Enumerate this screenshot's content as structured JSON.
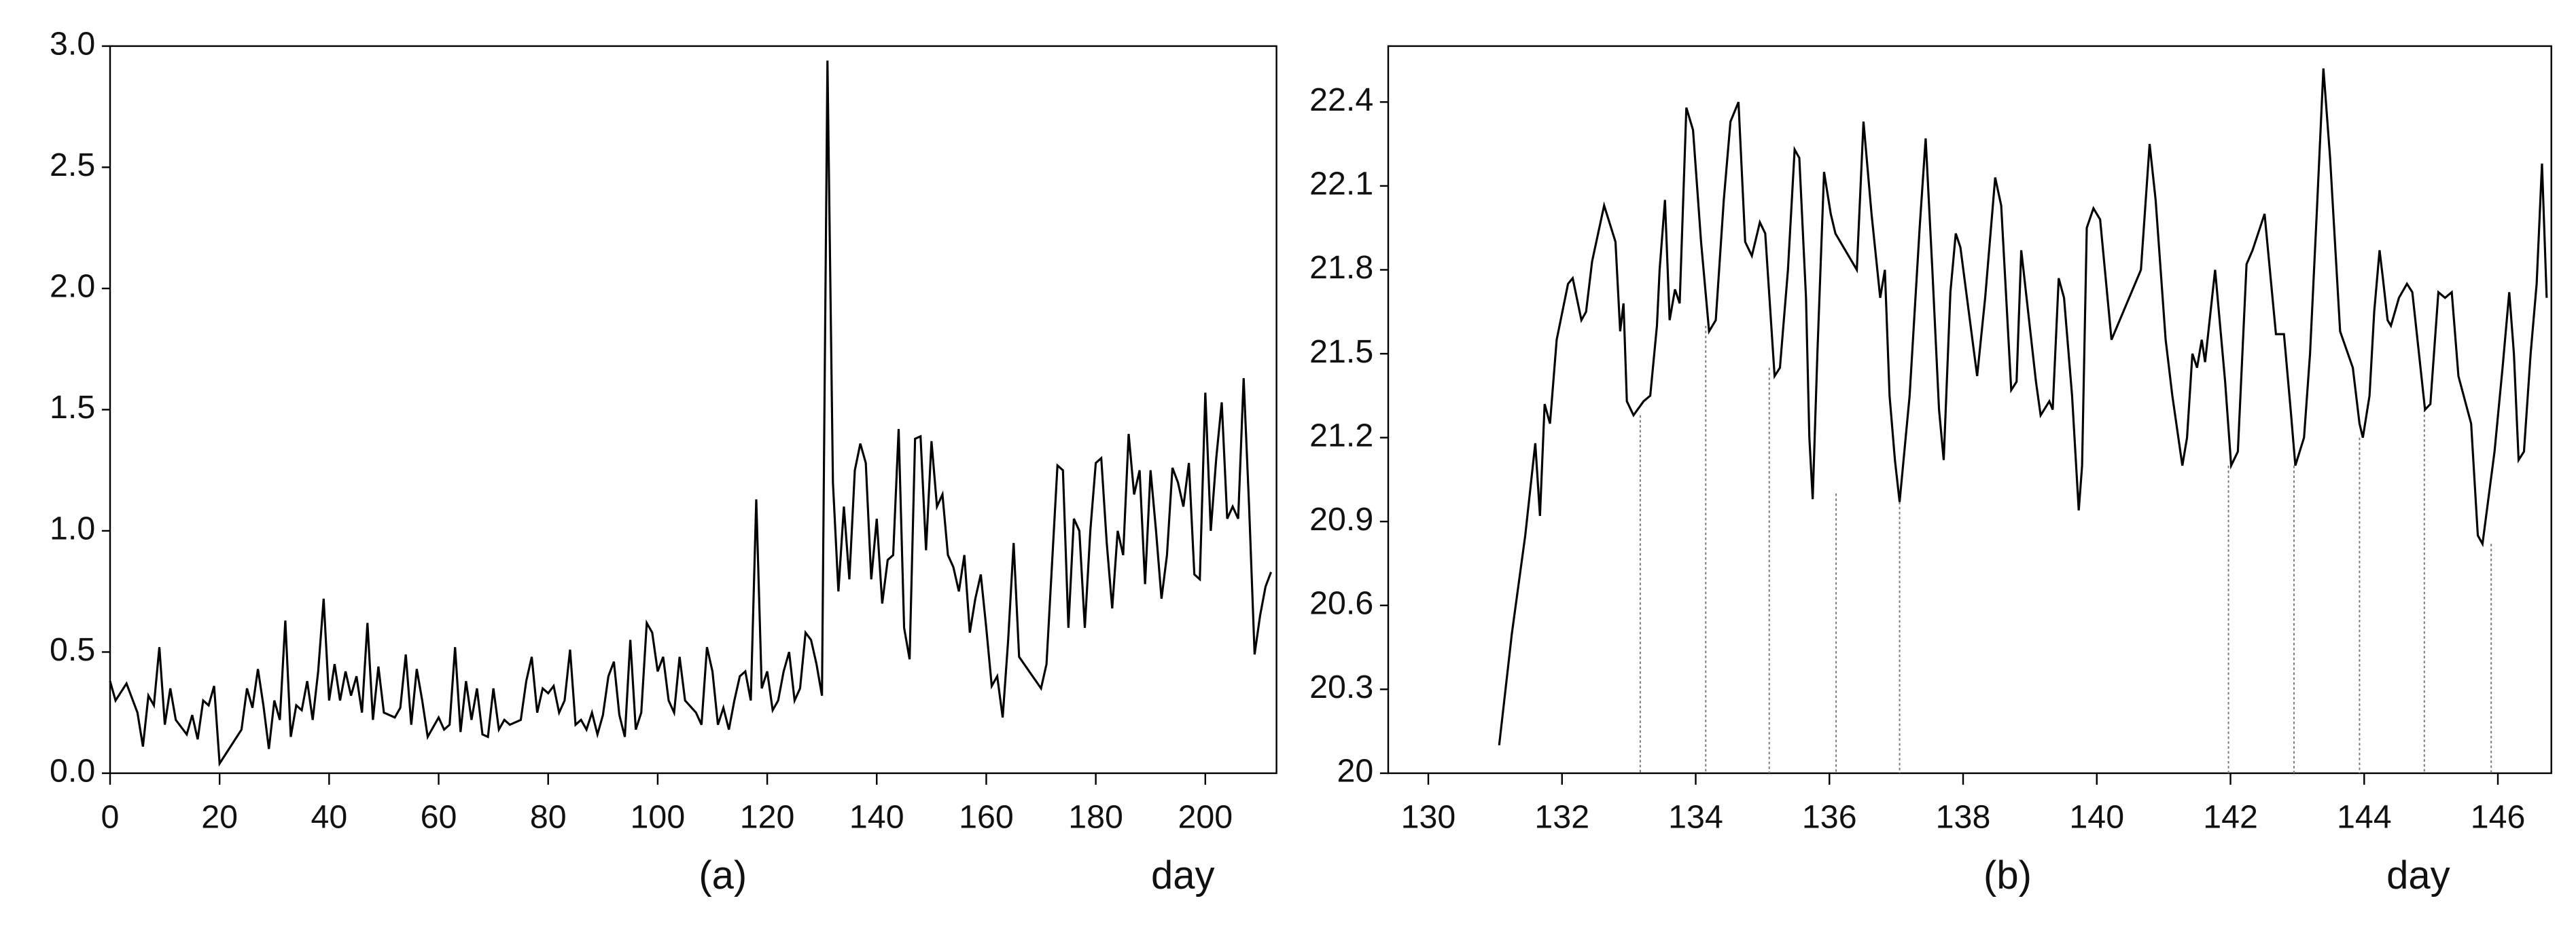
{
  "chart_data": [
    {
      "type": "line",
      "color": "#000000",
      "xlabel": "day",
      "caption": "(a)",
      "xlim": [
        0,
        213
      ],
      "xticks": [
        0,
        20,
        40,
        60,
        80,
        100,
        120,
        140,
        160,
        180,
        200
      ],
      "ylim": [
        0,
        3
      ],
      "yticks": [
        {
          "value": 0,
          "label": "0.0"
        },
        0.5,
        {
          "value": 1,
          "label": "1.0"
        },
        1.5,
        {
          "value": 2,
          "label": "2.0"
        },
        2.5,
        {
          "value": 3,
          "label": "3.0"
        }
      ],
      "x": [
        0,
        1,
        3,
        5,
        6,
        7,
        8,
        9,
        10,
        11,
        12,
        14,
        15,
        16,
        17,
        18,
        19,
        20,
        24,
        25,
        26,
        27,
        28,
        29,
        30,
        31,
        32,
        33,
        34,
        35,
        36,
        37,
        38,
        39,
        40,
        41,
        42,
        43,
        44,
        45,
        46,
        47,
        48,
        49,
        50,
        52,
        53,
        54,
        55,
        56,
        57,
        58,
        60,
        61,
        62,
        63,
        64,
        65,
        66,
        67,
        68,
        69,
        70,
        71,
        72,
        73,
        75,
        76,
        77,
        78,
        79,
        80,
        81,
        82,
        83,
        84,
        85,
        86,
        87,
        88,
        89,
        90,
        91,
        92,
        93,
        94,
        95,
        96,
        97,
        98,
        99,
        100,
        101,
        102,
        103,
        104,
        105,
        107,
        108,
        109,
        110,
        111,
        112,
        113,
        114,
        115,
        116,
        117,
        118,
        119,
        120,
        121,
        122,
        123,
        124,
        125,
        126,
        127,
        128,
        129,
        130,
        131,
        132,
        133,
        134,
        135,
        136,
        137,
        138,
        139,
        140,
        141,
        142,
        143,
        144,
        145,
        146,
        147,
        148,
        149,
        150,
        151,
        152,
        153,
        154,
        155,
        156,
        157,
        158,
        159,
        160,
        161,
        162,
        163,
        164,
        165,
        166,
        170,
        171,
        173,
        174,
        175,
        176,
        177,
        178,
        179,
        180,
        181,
        182,
        183,
        184,
        185,
        186,
        187,
        188,
        189,
        190,
        191,
        192,
        193,
        194,
        195,
        196,
        197,
        198,
        199,
        200,
        201,
        202,
        203,
        204,
        205,
        206,
        207,
        208,
        209,
        210,
        211,
        212
      ],
      "values": [
        0.38,
        0.3,
        0.37,
        0.25,
        0.11,
        0.32,
        0.28,
        0.52,
        0.2,
        0.35,
        0.22,
        0.16,
        0.24,
        0.14,
        0.3,
        0.28,
        0.36,
        0.04,
        0.18,
        0.35,
        0.27,
        0.43,
        0.28,
        0.1,
        0.3,
        0.22,
        0.63,
        0.15,
        0.28,
        0.26,
        0.38,
        0.22,
        0.42,
        0.72,
        0.3,
        0.45,
        0.3,
        0.42,
        0.32,
        0.4,
        0.25,
        0.62,
        0.22,
        0.44,
        0.25,
        0.23,
        0.27,
        0.49,
        0.2,
        0.43,
        0.3,
        0.15,
        0.23,
        0.18,
        0.2,
        0.52,
        0.17,
        0.38,
        0.22,
        0.35,
        0.16,
        0.15,
        0.35,
        0.18,
        0.22,
        0.2,
        0.22,
        0.38,
        0.48,
        0.25,
        0.35,
        0.33,
        0.36,
        0.25,
        0.3,
        0.51,
        0.2,
        0.22,
        0.18,
        0.25,
        0.16,
        0.24,
        0.4,
        0.46,
        0.24,
        0.15,
        0.55,
        0.18,
        0.25,
        0.62,
        0.58,
        0.42,
        0.48,
        0.3,
        0.25,
        0.48,
        0.3,
        0.25,
        0.2,
        0.52,
        0.42,
        0.2,
        0.27,
        0.18,
        0.3,
        0.4,
        0.42,
        0.3,
        1.13,
        0.35,
        0.42,
        0.26,
        0.3,
        0.42,
        0.5,
        0.3,
        0.35,
        0.58,
        0.55,
        0.45,
        0.32,
        2.94,
        1.2,
        0.75,
        1.1,
        0.8,
        1.25,
        1.36,
        1.28,
        0.8,
        1.05,
        0.7,
        0.88,
        0.9,
        1.42,
        0.6,
        0.47,
        1.38,
        1.39,
        0.92,
        1.37,
        1.1,
        1.15,
        0.9,
        0.85,
        0.75,
        0.9,
        0.58,
        0.72,
        0.82,
        0.6,
        0.36,
        0.4,
        0.23,
        0.55,
        0.95,
        0.48,
        0.35,
        0.45,
        1.27,
        1.25,
        0.6,
        1.05,
        1.0,
        0.6,
        1.0,
        1.28,
        1.3,
        0.95,
        0.68,
        1.0,
        0.9,
        1.4,
        1.15,
        1.25,
        0.78,
        1.25,
        1.0,
        0.72,
        0.9,
        1.26,
        1.2,
        1.1,
        1.28,
        0.82,
        0.8,
        1.57,
        1.0,
        1.3,
        1.53,
        1.05,
        1.1,
        1.05,
        1.63,
        1.1,
        0.49,
        0.65,
        0.77,
        0.83
      ]
    },
    {
      "type": "line",
      "color": "#000000",
      "xlabel": "day",
      "caption": "(b)",
      "xlim": [
        129.4,
        146.8
      ],
      "xticks": [
        130,
        132,
        134,
        136,
        138,
        140,
        142,
        144,
        146
      ],
      "ylim": [
        20,
        22.6
      ],
      "yticks": [
        20,
        20.3,
        20.6,
        20.9,
        21.2,
        21.5,
        21.8,
        22.1,
        22.4
      ],
      "x": [
        131.06,
        131.25,
        131.45,
        131.6,
        131.67,
        131.74,
        131.82,
        131.92,
        132.09,
        132.16,
        132.29,
        132.36,
        132.45,
        132.63,
        132.8,
        132.87,
        132.92,
        132.97,
        133.07,
        133.22,
        133.32,
        133.42,
        133.46,
        133.54,
        133.61,
        133.69,
        133.76,
        133.86,
        133.96,
        134.08,
        134.2,
        134.3,
        134.42,
        134.52,
        134.64,
        134.74,
        134.84,
        134.96,
        135.04,
        135.18,
        135.26,
        135.38,
        135.48,
        135.55,
        135.65,
        135.7,
        135.75,
        135.82,
        135.92,
        136.02,
        136.09,
        136.41,
        136.51,
        136.63,
        136.76,
        136.83,
        136.9,
        136.98,
        137.05,
        137.2,
        137.35,
        137.44,
        137.54,
        137.64,
        137.71,
        137.81,
        137.89,
        137.96,
        138.21,
        138.33,
        138.48,
        138.57,
        138.72,
        138.8,
        138.87,
        139.09,
        139.16,
        139.29,
        139.34,
        139.43,
        139.51,
        139.63,
        139.73,
        139.78,
        139.85,
        139.95,
        140.05,
        140.22,
        140.66,
        140.79,
        140.88,
        141.03,
        141.13,
        141.28,
        141.35,
        141.43,
        141.5,
        141.57,
        141.62,
        141.77,
        141.92,
        142.01,
        142.11,
        142.24,
        142.33,
        142.51,
        142.68,
        142.8,
        142.9,
        142.97,
        143.1,
        143.19,
        143.29,
        143.39,
        143.49,
        143.64,
        143.83,
        143.93,
        143.98,
        144.08,
        144.15,
        144.23,
        144.28,
        144.35,
        144.4,
        144.52,
        144.64,
        144.72,
        144.82,
        144.91,
        144.99,
        145.11,
        145.21,
        145.31,
        145.41,
        145.6,
        145.7,
        145.77,
        145.95,
        146.07,
        146.17,
        146.24,
        146.31,
        146.39,
        146.49,
        146.58,
        146.66,
        146.73
      ],
      "values": [
        20.1,
        20.5,
        20.85,
        21.18,
        20.92,
        21.32,
        21.25,
        21.55,
        21.75,
        21.77,
        21.62,
        21.65,
        21.83,
        22.03,
        21.9,
        21.58,
        21.68,
        21.33,
        21.28,
        21.33,
        21.35,
        21.6,
        21.8,
        22.05,
        21.62,
        21.73,
        21.68,
        22.38,
        22.3,
        21.9,
        21.58,
        21.62,
        22.05,
        22.33,
        22.4,
        21.9,
        21.85,
        21.97,
        21.93,
        21.42,
        21.45,
        21.8,
        22.23,
        22.2,
        21.7,
        21.2,
        20.98,
        21.5,
        22.15,
        22.0,
        21.93,
        21.8,
        22.33,
        22.0,
        21.7,
        21.8,
        21.35,
        21.12,
        20.97,
        21.35,
        21.95,
        22.27,
        21.8,
        21.3,
        21.12,
        21.72,
        21.93,
        21.88,
        21.42,
        21.7,
        22.13,
        22.03,
        21.37,
        21.4,
        21.87,
        21.4,
        21.28,
        21.33,
        21.3,
        21.77,
        21.7,
        21.35,
        20.94,
        21.1,
        21.95,
        22.02,
        21.98,
        21.55,
        21.8,
        22.25,
        22.05,
        21.55,
        21.35,
        21.1,
        21.2,
        21.5,
        21.45,
        21.55,
        21.47,
        21.8,
        21.4,
        21.1,
        21.15,
        21.82,
        21.87,
        22.0,
        21.57,
        21.57,
        21.3,
        21.1,
        21.2,
        21.5,
        22.0,
        22.52,
        22.2,
        21.58,
        21.45,
        21.25,
        21.2,
        21.35,
        21.65,
        21.87,
        21.77,
        21.62,
        21.6,
        21.7,
        21.75,
        21.72,
        21.5,
        21.3,
        21.32,
        21.72,
        21.7,
        21.72,
        21.42,
        21.25,
        20.85,
        20.82,
        21.15,
        21.45,
        21.72,
        21.5,
        21.12,
        21.15,
        21.5,
        21.75,
        22.18,
        21.7
      ],
      "drop_lines": {
        "x": [
          133.17,
          134.15,
          135.1,
          136.1,
          137.05,
          141.97,
          142.95,
          143.93,
          144.9,
          145.9
        ],
        "y": [
          21.28,
          21.6,
          21.45,
          21.0,
          20.97,
          21.1,
          21.1,
          21.2,
          21.3,
          20.82
        ]
      }
    }
  ]
}
